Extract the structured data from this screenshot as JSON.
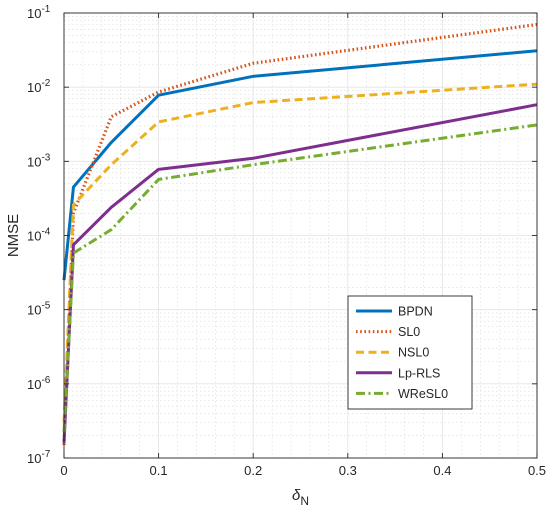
{
  "chart_data": {
    "type": "line",
    "xlabel": {
      "main": "δ",
      "sub": "N"
    },
    "ylabel": "NMSE",
    "xlim": [
      0,
      0.5
    ],
    "ylim_log10": [
      -7,
      -1
    ],
    "y_scale": "log",
    "grid": true,
    "minor_grid": true,
    "legend_position": "lower-right",
    "x_ticks": [
      "0",
      "0.1",
      "0.2",
      "0.3",
      "0.4",
      "0.5"
    ],
    "x_tick_values": [
      0,
      0.1,
      0.2,
      0.3,
      0.4,
      0.5
    ],
    "y_tick_exponents": [
      -7,
      -6,
      -5,
      -4,
      -3,
      -2,
      -1
    ],
    "y_tick_base": "10",
    "x": [
      0,
      0.01,
      0.05,
      0.1,
      0.2,
      0.5
    ],
    "series": [
      {
        "name": "BPDN",
        "color": "#0072BD",
        "dash": "solid",
        "values": [
          2.5e-05,
          0.00045,
          0.0018,
          0.0078,
          0.014,
          0.031
        ]
      },
      {
        "name": "SL0",
        "color": "#D95319",
        "dash": "dotted",
        "values": [
          1.5e-07,
          0.0002,
          0.004,
          0.0086,
          0.021,
          0.07
        ]
      },
      {
        "name": "NSL0",
        "color": "#EDB120",
        "dash": "dashed",
        "values": [
          3e-07,
          0.00026,
          0.0009,
          0.0034,
          0.0062,
          0.011
        ]
      },
      {
        "name": "Lp-RLS",
        "color": "#7E2F8E",
        "dash": "solid",
        "values": [
          1.6e-07,
          7.5e-05,
          0.00024,
          0.00078,
          0.0011,
          0.0058
        ]
      },
      {
        "name": "WReSL0",
        "color": "#77AC30",
        "dash": "dashdot",
        "values": [
          2.2e-07,
          5.8e-05,
          0.00012,
          0.00057,
          0.0009,
          0.0031
        ]
      }
    ]
  }
}
